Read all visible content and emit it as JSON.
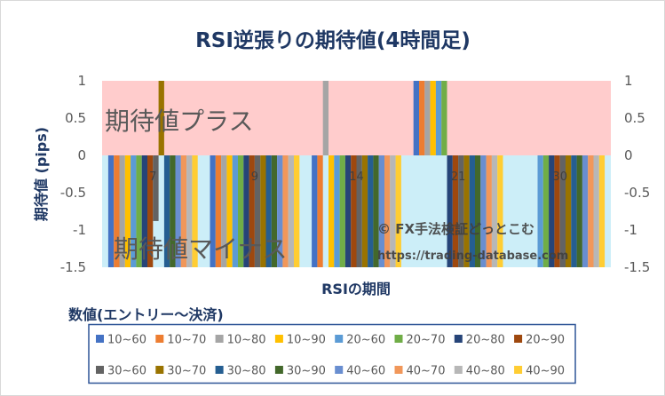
{
  "chart_data": {
    "type": "bar",
    "title": "RSI逆張りの期待値(4時間足)",
    "xlabel": "RSIの期間",
    "ylabel": "期待値 (pips)",
    "ylim": [
      -1.5,
      1
    ],
    "yticks": [
      1,
      0.5,
      0,
      -0.5,
      -1,
      -1.5
    ],
    "secondary_yaxis": true,
    "grid": false,
    "categories": [
      "7",
      "9",
      "14",
      "21",
      "30"
    ],
    "legend": {
      "title": "数値(エントリー～決済)",
      "position": "bottom"
    },
    "bands": [
      {
        "label": "期待値プラス",
        "from": 0,
        "to": 1,
        "color": "#FFCCCC"
      },
      {
        "label": "期待値マイナス",
        "from": -1.5,
        "to": 0,
        "color": "#CCEEF8"
      }
    ],
    "series": [
      {
        "name": "10~60",
        "color": "#4472C4",
        "values": [
          -1.5,
          -1.5,
          -1.5,
          1,
          0
        ]
      },
      {
        "name": "10~70",
        "color": "#ED7D31",
        "values": [
          -1.5,
          -1.5,
          -1.5,
          1,
          0
        ]
      },
      {
        "name": "10~80",
        "color": "#A5A5A5",
        "values": [
          -1.5,
          -1.5,
          1,
          1,
          0
        ]
      },
      {
        "name": "10~90",
        "color": "#FFC000",
        "values": [
          -1.5,
          -1.5,
          -1.5,
          1,
          0
        ]
      },
      {
        "name": "20~60",
        "color": "#5B9BD5",
        "values": [
          -1.5,
          -1.5,
          -1.5,
          1,
          -1.5
        ]
      },
      {
        "name": "20~70",
        "color": "#70AD47",
        "values": [
          -1.5,
          -1.5,
          -1.5,
          1,
          -1.5
        ]
      },
      {
        "name": "20~80",
        "color": "#264478",
        "values": [
          -1.5,
          -1.5,
          -1.5,
          -1.5,
          -1.5
        ]
      },
      {
        "name": "20~90",
        "color": "#9E480E",
        "values": [
          -1.5,
          -1.5,
          -1.5,
          -1.5,
          -1.5
        ]
      },
      {
        "name": "30~60",
        "color": "#636363",
        "values": [
          -0.88,
          -1.5,
          -1.5,
          -1.5,
          -1.5
        ]
      },
      {
        "name": "30~70",
        "color": "#997300",
        "values": [
          1,
          -1.5,
          -1.5,
          -1.5,
          -1.5
        ]
      },
      {
        "name": "30~80",
        "color": "#255E91",
        "values": [
          -1.5,
          -1.5,
          -1.5,
          -1.5,
          -1.5
        ]
      },
      {
        "name": "30~90",
        "color": "#43682B",
        "values": [
          -1.5,
          -1.5,
          -1.5,
          -1.5,
          -1.5
        ]
      },
      {
        "name": "40~60",
        "color": "#698ED0",
        "values": [
          -1.5,
          -1.5,
          -1.5,
          -1.5,
          -1.5
        ]
      },
      {
        "name": "40~70",
        "color": "#F1975A",
        "values": [
          -1.5,
          -1.5,
          -1.5,
          -1.5,
          -1.5
        ]
      },
      {
        "name": "40~80",
        "color": "#B7B7B7",
        "values": [
          -1.5,
          -1.5,
          -1.5,
          -1.5,
          -1.5
        ]
      },
      {
        "name": "40~90",
        "color": "#FFCD33",
        "values": [
          -1.5,
          -1.5,
          -1.5,
          -1.5,
          -1.5
        ]
      }
    ]
  },
  "watermark": {
    "copyright": "© FX手法検証どっとこむ",
    "url": "https://trading-database.com"
  }
}
